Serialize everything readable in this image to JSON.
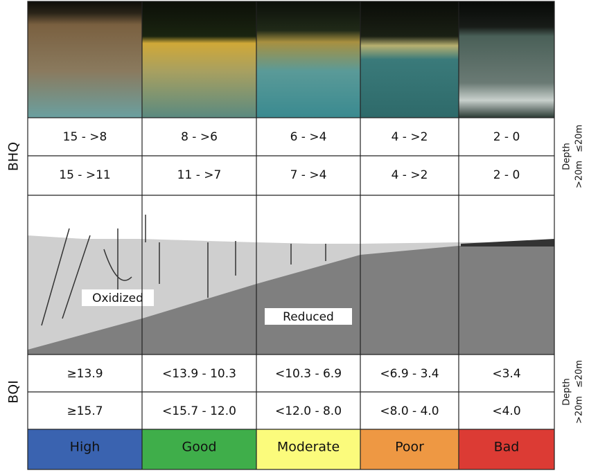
{
  "bhq": {
    "label": "BHQ",
    "rows": [
      [
        "15 - >8",
        "8 - >6",
        "6 - >4",
        "4 - >2",
        "2 - 0"
      ],
      [
        "15 - >11",
        "11 - >7",
        "7 - >4",
        "4 - >2",
        "2 - 0"
      ]
    ],
    "depth": {
      "title": "Depth",
      "shallow": "≤20m",
      "deep": ">20m"
    }
  },
  "profile": {
    "oxidized": "Oxidized",
    "reduced": "Reduced"
  },
  "bqi": {
    "label": "BQI",
    "rows": [
      [
        "≥13.9",
        "<13.9 - 10.3",
        "<10.3 - 6.9",
        "<6.9 - 3.4",
        "<3.4"
      ],
      [
        "≥15.7",
        "<15.7 - 12.0",
        "<12.0 - 8.0",
        "<8.0 - 4.0",
        "<4.0"
      ]
    ],
    "depth": {
      "title": "Depth",
      "shallow": "≤20m",
      "deep": ">20m"
    }
  },
  "classes": [
    "High",
    "Good",
    "Moderate",
    "Poor",
    "Bad"
  ]
}
